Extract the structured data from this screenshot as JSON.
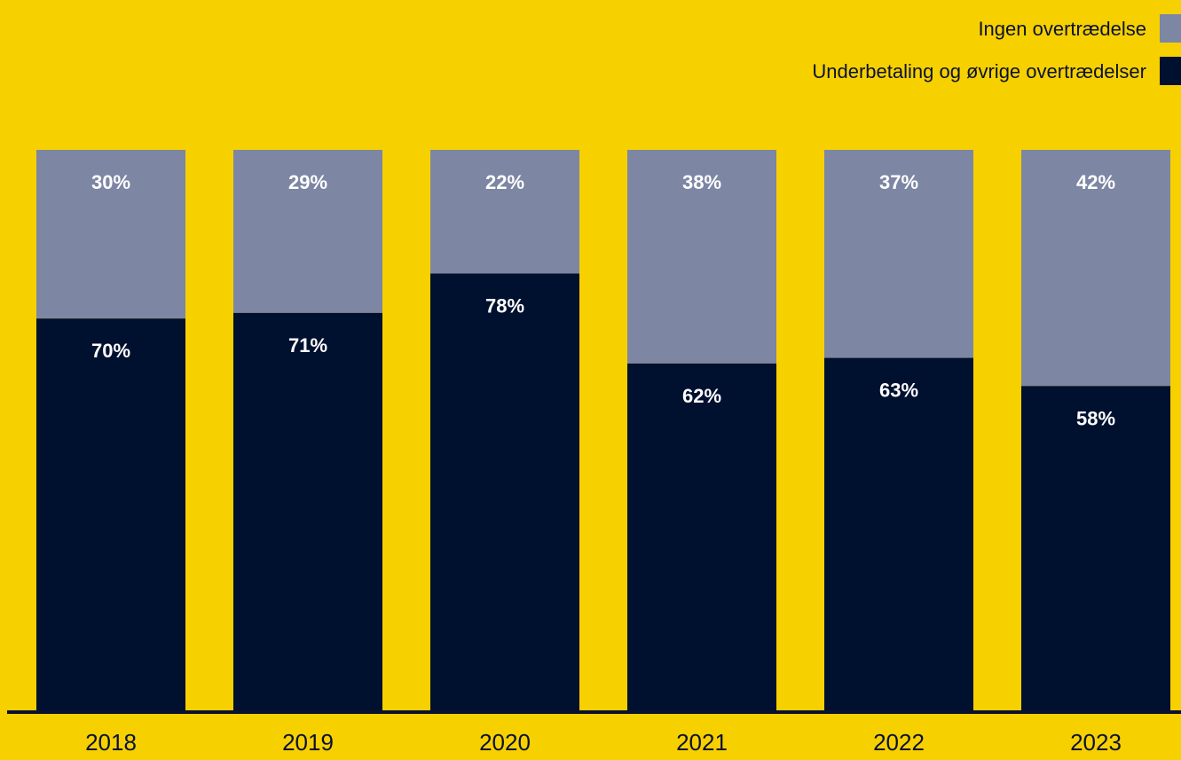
{
  "chart_data": {
    "type": "bar",
    "stacked": true,
    "normalized_percent": true,
    "categories": [
      "2018",
      "2019",
      "2020",
      "2021",
      "2022",
      "2023"
    ],
    "series": [
      {
        "name": "Underbetaling og øvrige overtrædelser",
        "color": "#00102F",
        "values": [
          70,
          71,
          78,
          62,
          63,
          58
        ],
        "labels": [
          "70%",
          "71%",
          "78%",
          "62%",
          "63%",
          "58%"
        ]
      },
      {
        "name": "Ingen overtrædelse",
        "color": "#7D86A3",
        "values": [
          30,
          29,
          22,
          38,
          37,
          42
        ],
        "labels": [
          "30%",
          "29%",
          "22%",
          "38%",
          "37%",
          "42%"
        ]
      }
    ],
    "legend_order": [
      "Ingen overtrædelse",
      "Underbetaling og øvrige overtrædelser"
    ],
    "ylim": [
      0,
      100
    ],
    "grid": false,
    "legend_position": "top-right",
    "background_color": "#F7D000",
    "text_color": "#0A1230"
  }
}
